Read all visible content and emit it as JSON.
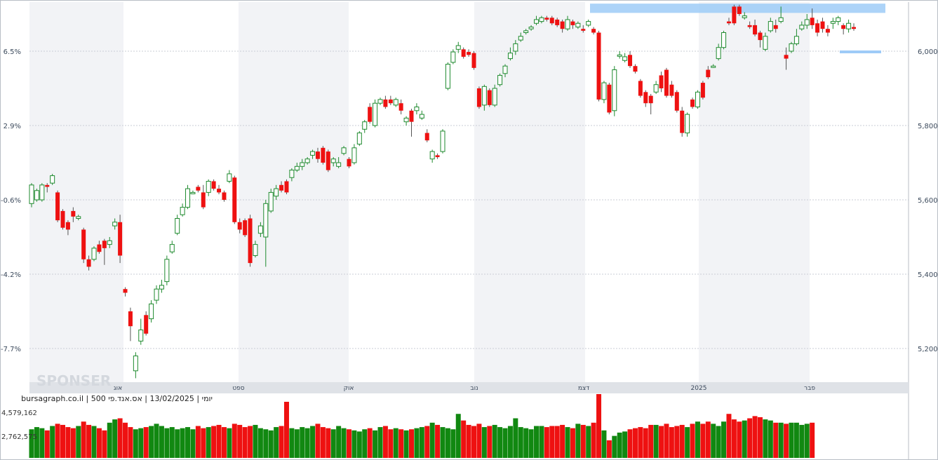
{
  "caption": "יומי | 13/02/2025 | אס.אנד.פי 500 | bursagraph.co.il",
  "watermark": "SPONSER",
  "colors": {
    "up": "#1e8a2e",
    "down": "#ee1111",
    "vol_up": "#118811",
    "vol_down": "#ee1111",
    "band": "#9ecbf7",
    "grid": "#c9ced6",
    "stripe": "#f2f3f6"
  },
  "chart_data": {
    "type": "candlestick",
    "period": "daily",
    "date": "13/02/2025",
    "instrument": "אס.אנד.פי 500",
    "source": "bursagraph.co.il",
    "left_axis_ticks": [
      "6.5%",
      "2.9%",
      "-0.6%",
      "-4.2%",
      "-7.7%"
    ],
    "right_axis_ticks": [
      "6,000",
      "5,800",
      "5,600",
      "5,400",
      "5,200"
    ],
    "ylim": [
      5100,
      6140
    ],
    "month_labels": [
      "אוג",
      "ספט",
      "אוק",
      "נוב",
      "דצמ",
      "2025",
      "פבר"
    ],
    "volume_ticks": [
      "4,579,162",
      "2,762,575"
    ],
    "resistance_band": [
      6103,
      6128
    ],
    "support_level": 6000,
    "candles": [
      [
        5590,
        5640,
        5580,
        5645
      ],
      [
        5600,
        5625,
        5595,
        5630
      ],
      [
        5600,
        5640,
        5595,
        5645
      ],
      [
        5640,
        5635,
        5620,
        5645
      ],
      [
        5645,
        5665,
        5640,
        5670
      ],
      [
        5620,
        5545,
        5540,
        5625
      ],
      [
        5570,
        5525,
        5520,
        5575
      ],
      [
        5540,
        5520,
        5505,
        5545
      ],
      [
        5570,
        5555,
        5540,
        5580
      ],
      [
        5550,
        5555,
        5545,
        5560
      ],
      [
        5520,
        5440,
        5430,
        5525
      ],
      [
        5440,
        5420,
        5410,
        5450
      ],
      [
        5440,
        5470,
        5435,
        5475
      ],
      [
        5480,
        5460,
        5455,
        5490
      ],
      [
        5490,
        5470,
        5425,
        5495
      ],
      [
        5480,
        5490,
        5470,
        5500
      ],
      [
        5530,
        5540,
        5520,
        5550
      ],
      [
        5540,
        5450,
        5430,
        5560
      ],
      [
        5360,
        5350,
        5340,
        5365
      ],
      [
        5300,
        5260,
        5220,
        5310
      ],
      [
        5140,
        5180,
        5120,
        5190
      ],
      [
        5220,
        5250,
        5210,
        5280
      ],
      [
        5290,
        5240,
        5235,
        5300
      ],
      [
        5280,
        5320,
        5270,
        5330
      ],
      [
        5330,
        5360,
        5320,
        5370
      ],
      [
        5360,
        5370,
        5350,
        5385
      ],
      [
        5380,
        5440,
        5370,
        5450
      ],
      [
        5460,
        5480,
        5455,
        5490
      ],
      [
        5510,
        5550,
        5505,
        5560
      ],
      [
        5560,
        5580,
        5555,
        5590
      ],
      [
        5580,
        5630,
        5575,
        5640
      ],
      [
        5620,
        5620,
        5615,
        5625
      ],
      [
        5635,
        5625,
        5620,
        5640
      ],
      [
        5620,
        5580,
        5575,
        5640
      ],
      [
        5620,
        5650,
        5610,
        5655
      ],
      [
        5650,
        5630,
        5625,
        5655
      ],
      [
        5630,
        5620,
        5615,
        5640
      ],
      [
        5620,
        5600,
        5595,
        5625
      ],
      [
        5650,
        5670,
        5645,
        5680
      ],
      [
        5660,
        5540,
        5535,
        5665
      ],
      [
        5540,
        5520,
        5510,
        5550
      ],
      [
        5545,
        5505,
        5500,
        5550
      ],
      [
        5550,
        5430,
        5420,
        5560
      ],
      [
        5450,
        5480,
        5445,
        5490
      ],
      [
        5510,
        5530,
        5500,
        5540
      ],
      [
        5500,
        5590,
        5420,
        5600
      ],
      [
        5570,
        5620,
        5565,
        5630
      ],
      [
        5610,
        5630,
        5600,
        5640
      ],
      [
        5640,
        5625,
        5620,
        5650
      ],
      [
        5650,
        5620,
        5615,
        5655
      ],
      [
        5660,
        5680,
        5650,
        5685
      ],
      [
        5680,
        5690,
        5675,
        5700
      ],
      [
        5690,
        5700,
        5680,
        5710
      ],
      [
        5700,
        5710,
        5695,
        5715
      ],
      [
        5720,
        5730,
        5710,
        5735
      ],
      [
        5730,
        5710,
        5700,
        5740
      ],
      [
        5740,
        5700,
        5695,
        5745
      ],
      [
        5730,
        5680,
        5675,
        5735
      ],
      [
        5700,
        5710,
        5690,
        5715
      ],
      [
        5690,
        5700,
        5685,
        5715
      ],
      [
        5725,
        5740,
        5720,
        5745
      ],
      [
        5710,
        5690,
        5685,
        5715
      ],
      [
        5700,
        5740,
        5695,
        5750
      ],
      [
        5750,
        5780,
        5745,
        5785
      ],
      [
        5790,
        5810,
        5780,
        5815
      ],
      [
        5850,
        5810,
        5805,
        5860
      ],
      [
        5800,
        5860,
        5795,
        5870
      ],
      [
        5860,
        5870,
        5855,
        5875
      ],
      [
        5870,
        5850,
        5845,
        5880
      ],
      [
        5870,
        5860,
        5855,
        5880
      ],
      [
        5855,
        5870,
        5850,
        5875
      ],
      [
        5860,
        5840,
        5830,
        5870
      ],
      [
        5810,
        5820,
        5800,
        5825
      ],
      [
        5840,
        5810,
        5770,
        5845
      ],
      [
        5840,
        5850,
        5830,
        5860
      ],
      [
        5820,
        5830,
        5815,
        5840
      ],
      [
        5780,
        5760,
        5755,
        5790
      ],
      [
        5710,
        5730,
        5700,
        5735
      ],
      [
        5720,
        5715,
        5710,
        5725
      ],
      [
        5730,
        5785,
        5725,
        5790
      ],
      [
        5900,
        5965,
        5895,
        5970
      ],
      [
        5970,
        5998,
        5965,
        6005
      ],
      [
        6005,
        6015,
        5995,
        6025
      ],
      [
        6005,
        5985,
        5980,
        6010
      ],
      [
        5998,
        5990,
        5985,
        6005
      ],
      [
        5995,
        5955,
        5950,
        6000
      ],
      [
        5900,
        5850,
        5845,
        5905
      ],
      [
        5855,
        5905,
        5840,
        5910
      ],
      [
        5895,
        5855,
        5850,
        5900
      ],
      [
        5855,
        5900,
        5850,
        5910
      ],
      [
        5910,
        5935,
        5905,
        5940
      ],
      [
        5940,
        5960,
        5930,
        5965
      ],
      [
        5980,
        5995,
        5975,
        6010
      ],
      [
        6000,
        6020,
        5990,
        6030
      ],
      [
        6030,
        6040,
        6025,
        6050
      ],
      [
        6050,
        6055,
        6045,
        6060
      ],
      [
        6060,
        6065,
        6055,
        6070
      ],
      [
        6075,
        6085,
        6070,
        6095
      ],
      [
        6080,
        6090,
        6075,
        6095
      ],
      [
        6090,
        6085,
        6080,
        6095
      ],
      [
        6090,
        6075,
        6070,
        6095
      ],
      [
        6085,
        6070,
        6065,
        6090
      ],
      [
        6080,
        6060,
        6050,
        6085
      ],
      [
        6060,
        6085,
        6055,
        6095
      ],
      [
        6080,
        6070,
        6060,
        6085
      ],
      [
        6065,
        6075,
        6060,
        6080
      ],
      [
        6060,
        6055,
        6050,
        6070
      ],
      [
        6070,
        6080,
        6065,
        6085
      ],
      [
        6060,
        6050,
        6045,
        6065
      ],
      [
        6050,
        5870,
        5865,
        6055
      ],
      [
        5870,
        5915,
        5860,
        5920
      ],
      [
        5910,
        5835,
        5830,
        5915
      ],
      [
        5840,
        5950,
        5825,
        5960
      ],
      [
        5990,
        5990,
        5980,
        6000
      ],
      [
        5975,
        5985,
        5970,
        5995
      ],
      [
        5990,
        5960,
        5955,
        6000
      ],
      [
        5960,
        5945,
        5940,
        5965
      ],
      [
        5920,
        5880,
        5875,
        5925
      ],
      [
        5890,
        5860,
        5850,
        5895
      ],
      [
        5880,
        5860,
        5830,
        5885
      ],
      [
        5890,
        5910,
        5885,
        5920
      ],
      [
        5935,
        5900,
        5890,
        5945
      ],
      [
        5950,
        5880,
        5875,
        5955
      ],
      [
        5910,
        5880,
        5875,
        5920
      ],
      [
        5890,
        5840,
        5835,
        5895
      ],
      [
        5840,
        5780,
        5770,
        5850
      ],
      [
        5780,
        5830,
        5770,
        5835
      ],
      [
        5870,
        5850,
        5845,
        5875
      ],
      [
        5850,
        5890,
        5845,
        5895
      ],
      [
        5915,
        5875,
        5870,
        5920
      ],
      [
        5950,
        5930,
        5925,
        5960
      ],
      [
        5960,
        5960,
        5955,
        5965
      ],
      [
        5980,
        6010,
        5975,
        6020
      ],
      [
        6010,
        6050,
        6005,
        6055
      ],
      [
        6080,
        6075,
        6070,
        6090
      ],
      [
        6120,
        6075,
        6070,
        6125
      ],
      [
        6120,
        6100,
        6095,
        6125
      ],
      [
        6090,
        6095,
        6085,
        6105
      ],
      [
        6070,
        6065,
        6060,
        6080
      ],
      [
        6070,
        6045,
        6040,
        6085
      ],
      [
        6050,
        6030,
        6010,
        6055
      ],
      [
        6005,
        6040,
        6000,
        6050
      ],
      [
        6055,
        6080,
        6050,
        6090
      ],
      [
        6070,
        6060,
        6050,
        6085
      ],
      [
        6080,
        6090,
        6075,
        6120
      ],
      [
        5990,
        5980,
        5950,
        6010
      ],
      [
        6000,
        6020,
        5995,
        6025
      ],
      [
        6020,
        6040,
        6015,
        6060
      ],
      [
        6060,
        6070,
        6055,
        6080
      ],
      [
        6070,
        6085,
        6060,
        6100
      ],
      [
        6090,
        6070,
        6060,
        6115
      ],
      [
        6075,
        6050,
        6040,
        6085
      ],
      [
        6080,
        6060,
        6050,
        6090
      ],
      [
        6060,
        6050,
        6040,
        6070
      ],
      [
        6075,
        6080,
        6060,
        6090
      ],
      [
        6080,
        6090,
        6070,
        6095
      ],
      [
        6070,
        6060,
        6045,
        6075
      ],
      [
        6060,
        6075,
        6050,
        6085
      ],
      [
        6065,
        6060,
        6055,
        6075
      ]
    ],
    "volumes": [
      2.6,
      2.8,
      2.7,
      2.5,
      2.9,
      3.1,
      3.0,
      2.8,
      2.7,
      2.9,
      3.3,
      3.0,
      2.9,
      2.7,
      2.5,
      3.2,
      3.5,
      3.6,
      3.2,
      2.8,
      2.6,
      2.7,
      2.8,
      2.9,
      3.1,
      2.9,
      2.7,
      2.8,
      2.6,
      2.7,
      2.8,
      2.6,
      2.9,
      2.7,
      2.8,
      2.9,
      3.0,
      2.8,
      2.7,
      3.1,
      3.0,
      2.8,
      2.9,
      3.0,
      2.7,
      2.6,
      2.5,
      2.8,
      2.9,
      5.1,
      2.7,
      2.6,
      2.8,
      2.7,
      2.9,
      3.1,
      2.8,
      2.7,
      2.6,
      2.9,
      2.7,
      2.6,
      2.5,
      2.4,
      2.6,
      2.7,
      2.5,
      2.8,
      2.9,
      2.6,
      2.7,
      2.6,
      2.5,
      2.6,
      2.7,
      2.8,
      2.9,
      3.2,
      3.0,
      2.8,
      2.7,
      2.6,
      4.0,
      3.4,
      3.0,
      2.9,
      3.1,
      2.8,
      2.9,
      3.0,
      2.8,
      2.7,
      2.9,
      3.6,
      2.8,
      2.7,
      2.6,
      2.9,
      2.9,
      2.8,
      2.9,
      2.9,
      3.0,
      2.8,
      2.7,
      3.1,
      3.0,
      2.9,
      3.2,
      5.8,
      2.5,
      1.6,
      2.0,
      2.3,
      2.4,
      2.6,
      2.7,
      2.8,
      2.7,
      3.0,
      3.0,
      2.9,
      3.1,
      2.8,
      2.9,
      3.0,
      2.8,
      3.1,
      3.3,
      3.1,
      3.3,
      3.1,
      2.9,
      3.3,
      4.0,
      3.5,
      3.3,
      3.4,
      3.6,
      3.8,
      3.7,
      3.5,
      3.4,
      3.2,
      3.2,
      3.1,
      3.2,
      3.2,
      3.0,
      3.1,
      3.2
    ]
  }
}
